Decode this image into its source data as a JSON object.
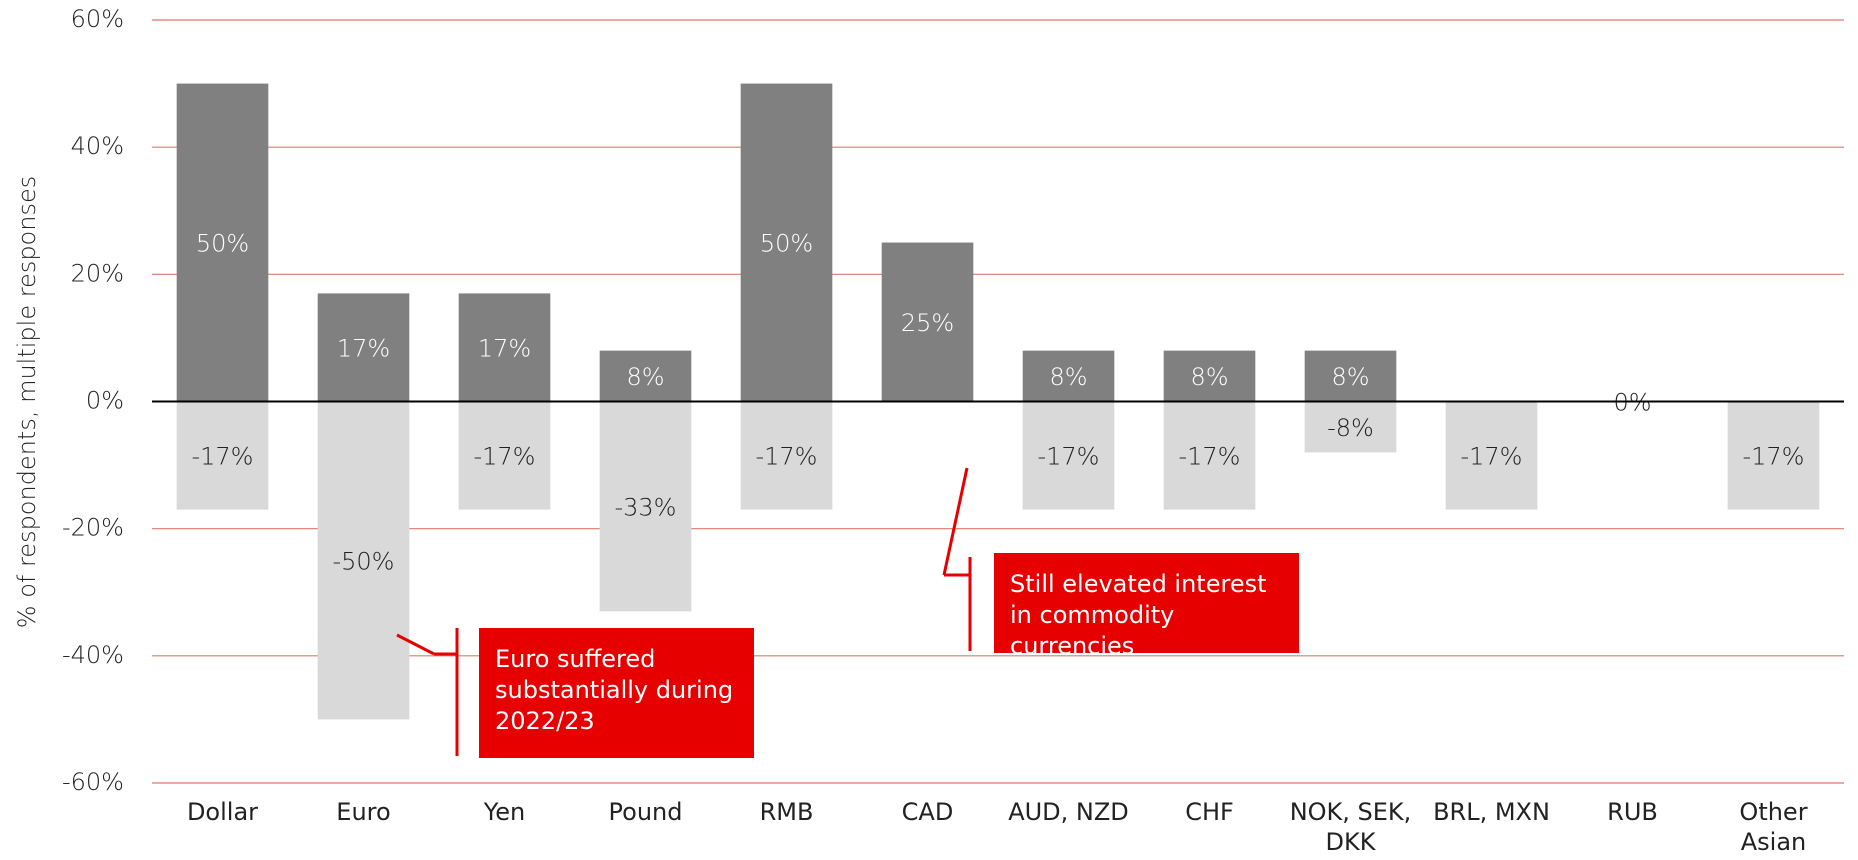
{
  "chart_data": {
    "type": "bar",
    "y_axis_label": "% of respondents, multiple responses",
    "categories": [
      "Dollar",
      "Euro",
      "Yen",
      "Pound",
      "RMB",
      "CAD",
      "AUD, NZD",
      "CHF",
      "NOK, SEK, DKK",
      "BRL, MXN",
      "RUB",
      "Other Asian exposure"
    ],
    "series": [
      {
        "color": "#808080",
        "values": [
          50,
          17,
          17,
          8,
          50,
          25,
          8,
          8,
          8,
          null,
          0,
          null
        ],
        "value_labels": [
          "50%",
          "17%",
          "17%",
          "8%",
          "50%",
          "25%",
          "8%",
          "8%",
          "8%",
          null,
          "0%",
          null
        ]
      },
      {
        "color": "#d9d9d9",
        "values": [
          -17,
          -50,
          -17,
          -33,
          -17,
          null,
          -17,
          -17,
          -8,
          -17,
          null,
          -17
        ],
        "value_labels": [
          "-17%",
          "-50%",
          "-17%",
          "-33%",
          "-17%",
          null,
          "-17%",
          "-17%",
          "-8%",
          "-17%",
          null,
          "-17%"
        ]
      }
    ],
    "ylim": [
      -60,
      60
    ],
    "yticks": [
      {
        "value": -60,
        "label": "-60%"
      },
      {
        "value": -40,
        "label": "-40%"
      },
      {
        "value": -20,
        "label": "-20%"
      },
      {
        "value": 0,
        "label": "0%"
      },
      {
        "value": 20,
        "label": "20%"
      },
      {
        "value": 40,
        "label": "40%"
      },
      {
        "value": 60,
        "label": "60%"
      }
    ],
    "grid": true,
    "grid_color": "#e0786c",
    "annotations": [
      {
        "text": "Euro suffered substantially during 2022/23",
        "color": "#e60000"
      },
      {
        "text": "Still elevated interest in commodity currencies",
        "color": "#e60000"
      }
    ]
  }
}
